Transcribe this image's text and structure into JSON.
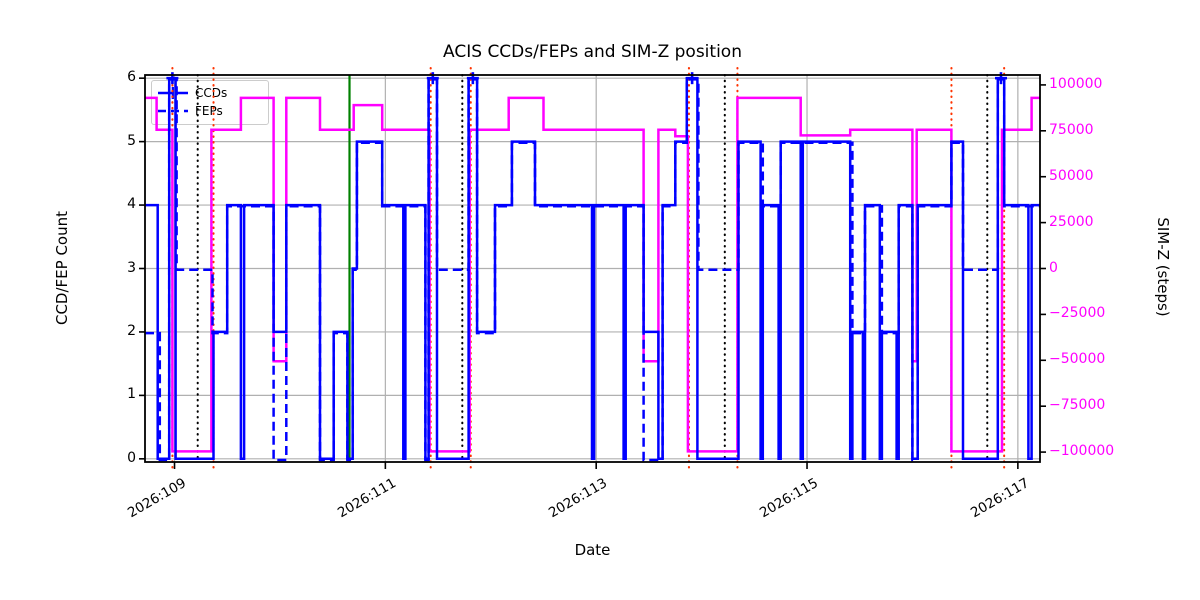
{
  "header": {
    "title": "ACIS CCDs/FEPs and SIM-Z position"
  },
  "legend": {
    "ccds_label": "CCDs",
    "feps_label": "FEPs"
  },
  "colors": {
    "blue": "#0000ff",
    "magenta": "#ff00ff",
    "green": "#008000",
    "red": "#ff3300",
    "black": "#000000",
    "grid": "#b0b0b0",
    "spine": "#000000"
  },
  "chart_data": {
    "type": "line",
    "subtype": "step",
    "title": "ACIS CCDs/FEPs and SIM-Z position",
    "xlabel": "Date",
    "ylabel_left": "CCD/FEP Count",
    "ylabel_right": "SIM-Z (steps)",
    "xlim": [
      108.72,
      117.21
    ],
    "ylim_left": [
      -0.05,
      6.05
    ],
    "ylim_right": [
      -105400,
      105400
    ],
    "grid": true,
    "legend_position": "upper left",
    "x_ticks": [
      {
        "value": 109,
        "label": "2026:109"
      },
      {
        "value": 111,
        "label": "2026:111"
      },
      {
        "value": 113,
        "label": "2026:113"
      },
      {
        "value": 115,
        "label": "2026:115"
      },
      {
        "value": 117,
        "label": "2026:117"
      }
    ],
    "y_ticks_left": [
      {
        "value": 0,
        "label": "0"
      },
      {
        "value": 1,
        "label": "1"
      },
      {
        "value": 2,
        "label": "2"
      },
      {
        "value": 3,
        "label": "3"
      },
      {
        "value": 4,
        "label": "4"
      },
      {
        "value": 5,
        "label": "5"
      },
      {
        "value": 6,
        "label": "6"
      }
    ],
    "y_ticks_right": [
      {
        "value": 100000,
        "label": "100000"
      },
      {
        "value": 75000,
        "label": "75000"
      },
      {
        "value": 50000,
        "label": "50000"
      },
      {
        "value": 25000,
        "label": "25000"
      },
      {
        "value": 0,
        "label": "0"
      },
      {
        "value": -25000,
        "label": "−25000"
      },
      {
        "value": -50000,
        "label": "−50000"
      },
      {
        "value": -75000,
        "label": "−75000"
      },
      {
        "value": -100000,
        "label": "−100000"
      }
    ],
    "series": [
      {
        "name": "CCDs",
        "axis": "left",
        "style": "solid",
        "marker": "plus",
        "steps": [
          [
            108.72,
            4
          ],
          [
            108.84,
            0
          ],
          [
            108.95,
            6
          ],
          [
            109.01,
            0
          ],
          [
            109.37,
            2
          ],
          [
            109.5,
            4
          ],
          [
            109.63,
            0
          ],
          [
            109.66,
            4
          ],
          [
            109.94,
            2
          ],
          [
            110.06,
            4
          ],
          [
            110.38,
            0
          ],
          [
            110.51,
            2
          ],
          [
            110.64,
            0
          ],
          [
            110.69,
            3
          ],
          [
            110.73,
            5
          ],
          [
            110.97,
            4
          ],
          [
            111.17,
            0
          ],
          [
            111.19,
            4
          ],
          [
            111.38,
            0
          ],
          [
            111.41,
            6
          ],
          [
            111.49,
            0
          ],
          [
            111.79,
            6
          ],
          [
            111.87,
            2
          ],
          [
            112.04,
            4
          ],
          [
            112.2,
            5
          ],
          [
            112.42,
            4
          ],
          [
            112.96,
            0
          ],
          [
            112.98,
            4
          ],
          [
            113.26,
            0
          ],
          [
            113.28,
            4
          ],
          [
            113.45,
            2
          ],
          [
            113.59,
            0
          ],
          [
            113.63,
            4
          ],
          [
            113.75,
            5
          ],
          [
            113.86,
            6
          ],
          [
            113.96,
            0
          ],
          [
            114.35,
            5
          ],
          [
            114.56,
            0
          ],
          [
            114.58,
            4
          ],
          [
            114.73,
            0
          ],
          [
            114.75,
            5
          ],
          [
            114.94,
            0
          ],
          [
            114.96,
            5
          ],
          [
            115.41,
            0
          ],
          [
            115.43,
            2
          ],
          [
            115.53,
            0
          ],
          [
            115.55,
            4
          ],
          [
            115.69,
            0
          ],
          [
            115.71,
            2
          ],
          [
            115.85,
            0
          ],
          [
            115.87,
            4
          ],
          [
            116.0,
            0
          ],
          [
            116.05,
            4
          ],
          [
            116.37,
            5
          ],
          [
            116.48,
            0
          ],
          [
            116.81,
            6
          ],
          [
            116.87,
            4
          ],
          [
            117.1,
            0
          ],
          [
            117.13,
            4
          ],
          [
            117.21,
            4
          ]
        ]
      },
      {
        "name": "FEPs",
        "axis": "left",
        "style": "dashed",
        "marker": "none",
        "steps": [
          [
            108.72,
            2
          ],
          [
            108.86,
            0
          ],
          [
            108.95,
            6
          ],
          [
            109.02,
            3
          ],
          [
            109.36,
            2
          ],
          [
            109.5,
            4
          ],
          [
            109.94,
            0
          ],
          [
            110.06,
            4
          ],
          [
            110.38,
            0
          ],
          [
            110.51,
            2
          ],
          [
            110.64,
            0
          ],
          [
            110.69,
            3
          ],
          [
            110.73,
            5
          ],
          [
            110.97,
            4
          ],
          [
            111.38,
            0
          ],
          [
            111.41,
            6
          ],
          [
            111.49,
            3
          ],
          [
            111.79,
            6
          ],
          [
            111.87,
            2
          ],
          [
            112.04,
            4
          ],
          [
            112.2,
            5
          ],
          [
            112.42,
            4
          ],
          [
            113.45,
            0
          ],
          [
            113.63,
            4
          ],
          [
            113.75,
            5
          ],
          [
            113.86,
            6
          ],
          [
            113.97,
            3
          ],
          [
            114.35,
            5
          ],
          [
            114.58,
            4
          ],
          [
            114.75,
            5
          ],
          [
            115.43,
            2
          ],
          [
            115.55,
            4
          ],
          [
            115.71,
            2
          ],
          [
            115.87,
            4
          ],
          [
            116.0,
            0
          ],
          [
            116.05,
            4
          ],
          [
            116.37,
            5
          ],
          [
            116.48,
            3
          ],
          [
            116.81,
            6
          ],
          [
            116.87,
            4
          ],
          [
            117.21,
            4
          ]
        ]
      },
      {
        "name": "SIM-Z",
        "axis": "right",
        "style": "solid",
        "marker": "none",
        "steps": [
          [
            108.72,
            92904
          ],
          [
            108.83,
            75624
          ],
          [
            108.98,
            -99616
          ],
          [
            109.35,
            75624
          ],
          [
            109.63,
            92904
          ],
          [
            109.94,
            -50505
          ],
          [
            110.06,
            92904
          ],
          [
            110.38,
            75624
          ],
          [
            110.7,
            89000
          ],
          [
            110.97,
            75624
          ],
          [
            111.42,
            -99616
          ],
          [
            111.8,
            75624
          ],
          [
            112.17,
            92904
          ],
          [
            112.5,
            75624
          ],
          [
            113.45,
            -50505
          ],
          [
            113.59,
            75624
          ],
          [
            113.75,
            72000
          ],
          [
            113.87,
            -99616
          ],
          [
            114.34,
            92904
          ],
          [
            114.94,
            72500
          ],
          [
            115.41,
            75624
          ],
          [
            116.0,
            -50505
          ],
          [
            116.04,
            75624
          ],
          [
            116.37,
            -99616
          ],
          [
            116.85,
            75624
          ],
          [
            117.13,
            92904
          ],
          [
            117.21,
            92904
          ]
        ]
      }
    ],
    "marker_points_ccds6": [
      108.98,
      111.45,
      111.83,
      113.91,
      116.84
    ],
    "vlines": {
      "black_dotted": [
        109.22,
        111.73,
        114.22,
        116.71
      ],
      "red_dotted": [
        108.98,
        109.37,
        111.43,
        111.81,
        113.88,
        114.34,
        116.37,
        116.87
      ],
      "green_solid": [
        110.66
      ]
    }
  }
}
